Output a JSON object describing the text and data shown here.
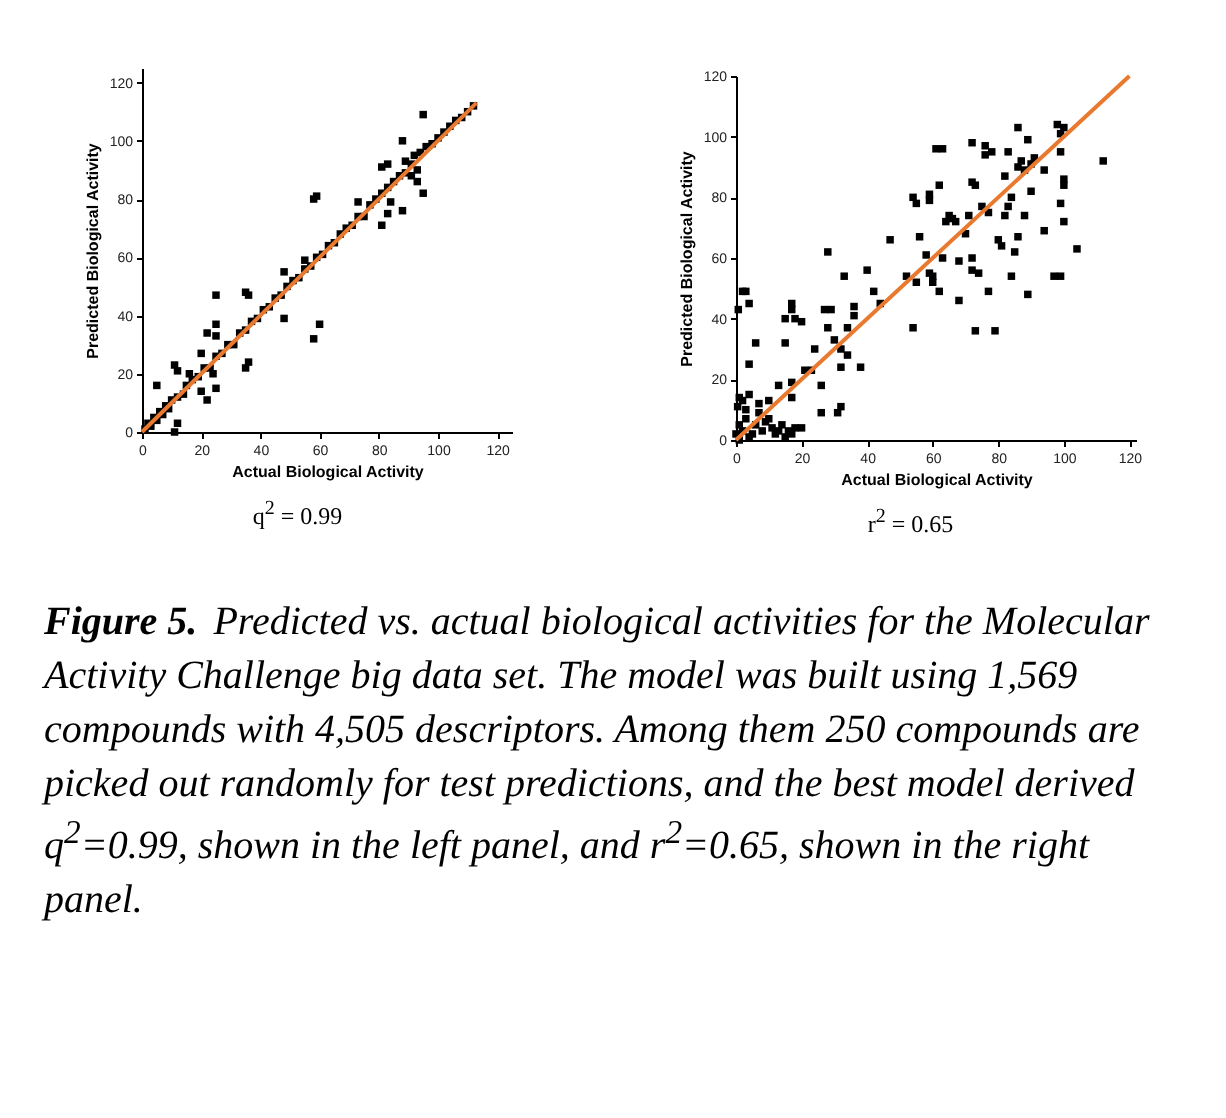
{
  "chart_data": [
    {
      "type": "scatter",
      "xlabel": "Actual Biological Activity",
      "ylabel": "Predicted Biological Activity",
      "xlim": [
        0,
        125
      ],
      "ylim": [
        0,
        125
      ],
      "xticks": [
        0,
        20,
        40,
        60,
        80,
        100,
        120
      ],
      "yticks": [
        0,
        20,
        40,
        60,
        80,
        100,
        120
      ],
      "grid": false,
      "annotations": [
        "q$^{2}$ = 0.99",
        "Figure 5.",
        "Predicted vs. actual biological activities for the Molecular Activity Challenge big data set. The model was built using 1,569 compounds with 4,505 descriptors. Among them 250 compounds are picked out randomly for test predictions, and the best model derived q$^{2}$=0.99, shown in the left panel, and r$^{2}$=0.65, shown in the right panel."
      ],
      "series": [
        {
          "marker": "square",
          "color": "#000000",
          "x": [
            1,
            2,
            3,
            4,
            5,
            6,
            7,
            8,
            9,
            10,
            12,
            14,
            15,
            17,
            19,
            21,
            23,
            25,
            27,
            29,
            31,
            33,
            35,
            37,
            39,
            41,
            43,
            45,
            47,
            49,
            51,
            53,
            55,
            57,
            59,
            61,
            63,
            65,
            67,
            69,
            71,
            73,
            75,
            77,
            79,
            81,
            83,
            85,
            87,
            89,
            91,
            92,
            93,
            94,
            96,
            98,
            100,
            102,
            104,
            106,
            108,
            110,
            112,
            5,
            11,
            12,
            11,
            12,
            16,
            20,
            22,
            20,
            22,
            25,
            25,
            25,
            25,
            24,
            35,
            36,
            35,
            36,
            48,
            48,
            55,
            58,
            59,
            58,
            60,
            73,
            81,
            83,
            81,
            83,
            84,
            88,
            88,
            95,
            95,
            89,
            91,
            93
          ],
          "values": [
            1,
            3,
            2,
            5,
            4,
            7,
            6,
            9,
            8,
            11,
            12,
            13,
            16,
            18,
            19,
            22,
            22,
            26,
            27,
            30,
            30,
            34,
            35,
            38,
            39,
            42,
            43,
            46,
            47,
            50,
            52,
            53,
            56,
            57,
            60,
            61,
            64,
            65,
            68,
            70,
            71,
            74,
            74,
            78,
            80,
            82,
            84,
            86,
            88,
            89,
            92,
            95,
            90,
            96,
            98,
            99,
            101,
            103,
            105,
            107,
            108,
            110,
            112,
            16,
            23,
            21,
            0,
            3,
            20,
            14,
            11,
            27,
            34,
            47,
            37,
            33,
            15,
            20,
            48,
            47,
            22,
            24,
            55,
            39,
            59,
            80,
            81,
            32,
            37,
            79,
            91,
            92,
            71,
            75,
            79,
            100,
            76,
            109,
            82,
            93,
            88,
            86
          ]
        },
        {
          "type": "line",
          "color": "#e8792f",
          "x": [
            0,
            113
          ],
          "values": [
            0,
            113
          ]
        }
      ]
    },
    {
      "type": "scatter",
      "xlabel": "Actual Biological Activity",
      "ylabel": "Predicted Biological Activity",
      "xlim": [
        0,
        122
      ],
      "ylim": [
        0,
        120
      ],
      "xticks": [
        0,
        20,
        40,
        60,
        80,
        100,
        120
      ],
      "yticks": [
        0,
        20,
        40,
        60,
        80,
        100,
        120
      ],
      "grid": false,
      "annotations": [
        "r$^{2}$ = 0.65"
      ],
      "series": [
        {
          "marker": "square",
          "color": "#000000",
          "x": [
            0.5,
            1,
            0.7,
            2,
            3,
            4,
            4,
            6,
            4,
            7,
            10,
            13,
            15,
            15,
            17,
            17,
            17,
            17,
            18,
            20,
            20,
            21,
            23,
            24,
            26,
            26,
            27,
            28,
            28,
            29,
            30,
            31,
            32,
            32,
            32,
            33,
            34,
            34,
            36,
            36,
            38,
            40,
            42,
            44,
            47,
            52,
            54,
            55,
            54,
            55,
            56,
            58,
            59,
            59,
            59,
            60,
            60,
            61,
            63,
            62,
            62,
            63,
            64,
            65,
            66,
            67,
            68,
            68,
            70,
            71,
            72,
            72,
            73,
            72,
            72,
            73,
            74,
            75,
            76,
            76,
            77,
            77,
            78,
            79,
            80,
            81,
            82,
            82,
            83,
            83,
            84,
            84,
            85,
            86,
            86,
            86,
            87,
            88,
            88,
            89,
            89,
            90,
            90,
            91,
            94,
            94,
            97,
            98,
            99,
            99,
            99,
            99,
            100,
            100,
            100,
            100,
            104,
            112,
            0,
            1,
            2,
            3,
            5,
            6,
            8,
            9,
            11,
            12,
            14,
            15,
            16,
            17,
            18,
            2,
            3,
            1,
            4,
            7,
            10,
            13
          ],
          "values": [
            11,
            14,
            43,
            49,
            49,
            45,
            25,
            32,
            15,
            12,
            13,
            18,
            32,
            40,
            45,
            43,
            19,
            14,
            40,
            39,
            4,
            23,
            23,
            30,
            18,
            9,
            43,
            62,
            37,
            43,
            33,
            9,
            11,
            24,
            30,
            54,
            28,
            37,
            41,
            44,
            24,
            56,
            49,
            45,
            66,
            54,
            80,
            78,
            37,
            52,
            67,
            61,
            81,
            79,
            55,
            54,
            52,
            96,
            96,
            84,
            49,
            60,
            72,
            74,
            73,
            72,
            46,
            59,
            68,
            74,
            98,
            85,
            84,
            60,
            56,
            36,
            55,
            77,
            97,
            94,
            49,
            75,
            95,
            36,
            66,
            64,
            74,
            87,
            95,
            77,
            80,
            54,
            62,
            103,
            67,
            90,
            92,
            89,
            74,
            99,
            48,
            91,
            82,
            93,
            89,
            69,
            54,
            104,
            101,
            54,
            78,
            95,
            72,
            86,
            84,
            103,
            63,
            92,
            2,
            5,
            3,
            7,
            2,
            5,
            3,
            6,
            4,
            2,
            5,
            1,
            3,
            2,
            4,
            13,
            10,
            0,
            1,
            9,
            7,
            3
          ]
        },
        {
          "type": "line",
          "color": "#e8792f",
          "x": [
            0,
            120
          ],
          "values": [
            0,
            120
          ]
        }
      ]
    }
  ]
}
